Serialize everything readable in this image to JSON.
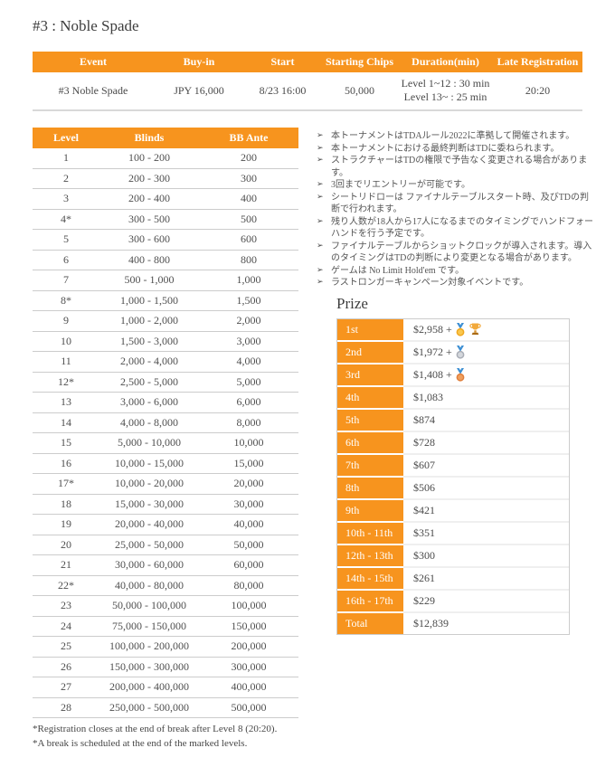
{
  "page": {
    "title": "#3 : Noble Spade"
  },
  "colors": {
    "accent_orange": "#F7941E",
    "header_text": "#FFFFFF",
    "body_text": "#4A4A4A",
    "row_border": "#CCCCCC"
  },
  "event_table": {
    "headers": [
      "Event",
      "Buy-in",
      "Start",
      "Starting Chips",
      "Duration(min)",
      "Late Registration"
    ],
    "row": {
      "event": "#3 Noble Spade",
      "buy_in": "JPY 16,000",
      "start": "8/23 16:00",
      "starting_chips": "50,000",
      "duration_line1": "Level 1~12 : 30 min",
      "duration_line2": "Level 13~ : 25 min",
      "late_registration": "20:20"
    }
  },
  "levels_table": {
    "headers": [
      "Level",
      "Blinds",
      "BB Ante"
    ],
    "rows": [
      {
        "level": "1",
        "blinds": "100 - 200",
        "bb_ante": "200"
      },
      {
        "level": "2",
        "blinds": "200 - 300",
        "bb_ante": "300"
      },
      {
        "level": "3",
        "blinds": "200 - 400",
        "bb_ante": "400"
      },
      {
        "level": "4*",
        "blinds": "300 - 500",
        "bb_ante": "500"
      },
      {
        "level": "5",
        "blinds": "300 - 600",
        "bb_ante": "600"
      },
      {
        "level": "6",
        "blinds": "400 - 800",
        "bb_ante": "800"
      },
      {
        "level": "7",
        "blinds": "500 - 1,000",
        "bb_ante": "1,000"
      },
      {
        "level": "8*",
        "blinds": "1,000 - 1,500",
        "bb_ante": "1,500"
      },
      {
        "level": "9",
        "blinds": "1,000 - 2,000",
        "bb_ante": "2,000"
      },
      {
        "level": "10",
        "blinds": "1,500 - 3,000",
        "bb_ante": "3,000"
      },
      {
        "level": "11",
        "blinds": "2,000 - 4,000",
        "bb_ante": "4,000"
      },
      {
        "level": "12*",
        "blinds": "2,500 - 5,000",
        "bb_ante": "5,000"
      },
      {
        "level": "13",
        "blinds": "3,000 - 6,000",
        "bb_ante": "6,000"
      },
      {
        "level": "14",
        "blinds": "4,000 - 8,000",
        "bb_ante": "8,000"
      },
      {
        "level": "15",
        "blinds": "5,000 - 10,000",
        "bb_ante": "10,000"
      },
      {
        "level": "16",
        "blinds": "10,000 - 15,000",
        "bb_ante": "15,000"
      },
      {
        "level": "17*",
        "blinds": "10,000 - 20,000",
        "bb_ante": "20,000"
      },
      {
        "level": "18",
        "blinds": "15,000 - 30,000",
        "bb_ante": "30,000"
      },
      {
        "level": "19",
        "blinds": "20,000 - 40,000",
        "bb_ante": "40,000"
      },
      {
        "level": "20",
        "blinds": "25,000 - 50,000",
        "bb_ante": "50,000"
      },
      {
        "level": "21",
        "blinds": "30,000 - 60,000",
        "bb_ante": "60,000"
      },
      {
        "level": "22*",
        "blinds": "40,000 - 80,000",
        "bb_ante": "80,000"
      },
      {
        "level": "23",
        "blinds": "50,000 - 100,000",
        "bb_ante": "100,000"
      },
      {
        "level": "24",
        "blinds": "75,000 - 150,000",
        "bb_ante": "150,000"
      },
      {
        "level": "25",
        "blinds": "100,000 - 200,000",
        "bb_ante": "200,000"
      },
      {
        "level": "26",
        "blinds": "150,000 - 300,000",
        "bb_ante": "300,000"
      },
      {
        "level": "27",
        "blinds": "200,000 - 400,000",
        "bb_ante": "400,000"
      },
      {
        "level": "28",
        "blinds": "250,000 - 500,000",
        "bb_ante": "500,000"
      }
    ],
    "footnotes": [
      "*Registration closes at the end of break after Level 8 (20:20).",
      "*A break is scheduled at the end of the marked levels."
    ]
  },
  "notes": {
    "bullet": "➢",
    "items": [
      "本トーナメントはTDAルール2022に準拠して開催されます。",
      "本トーナメントにおける最終判断はTDに委ねられます。",
      "ストラクチャーはTDの権限で予告なく変更される場合があります。",
      "3回までリエントリーが可能です。",
      "シートリドローは ファイナルテーブルスタート時、及びTDの判断で行われます。",
      "残り人数が18人から17人になるまでのタイミングでハンドフォーハンドを行う予定です。",
      "ファイナルテーブルからショットクロックが導入されます。導入のタイミングはTDの判断により変更となる場合があります。",
      "ゲームは No Limit Hold'em です。",
      "ラストロンガーキャンペーン対象イベントです。"
    ]
  },
  "prize": {
    "heading": "Prize",
    "rows": [
      {
        "place": "1st",
        "amount": "$2,958 +",
        "icons": [
          "gold-medal",
          "trophy"
        ]
      },
      {
        "place": "2nd",
        "amount": "$1,972 +",
        "icons": [
          "silver-medal"
        ]
      },
      {
        "place": "3rd",
        "amount": "$1,408 +",
        "icons": [
          "bronze-medal"
        ]
      },
      {
        "place": "4th",
        "amount": "$1,083",
        "icons": []
      },
      {
        "place": "5th",
        "amount": "$874",
        "icons": []
      },
      {
        "place": "6th",
        "amount": "$728",
        "icons": []
      },
      {
        "place": "7th",
        "amount": "$607",
        "icons": []
      },
      {
        "place": "8th",
        "amount": "$506",
        "icons": []
      },
      {
        "place": "9th",
        "amount": "$421",
        "icons": []
      },
      {
        "place": "10th - 11th",
        "amount": "$351",
        "icons": []
      },
      {
        "place": "12th - 13th",
        "amount": "$300",
        "icons": []
      },
      {
        "place": "14th - 15th",
        "amount": "$261",
        "icons": []
      },
      {
        "place": "16th - 17th",
        "amount": "$229",
        "icons": []
      },
      {
        "place": "Total",
        "amount": "$12,839",
        "icons": []
      }
    ]
  }
}
